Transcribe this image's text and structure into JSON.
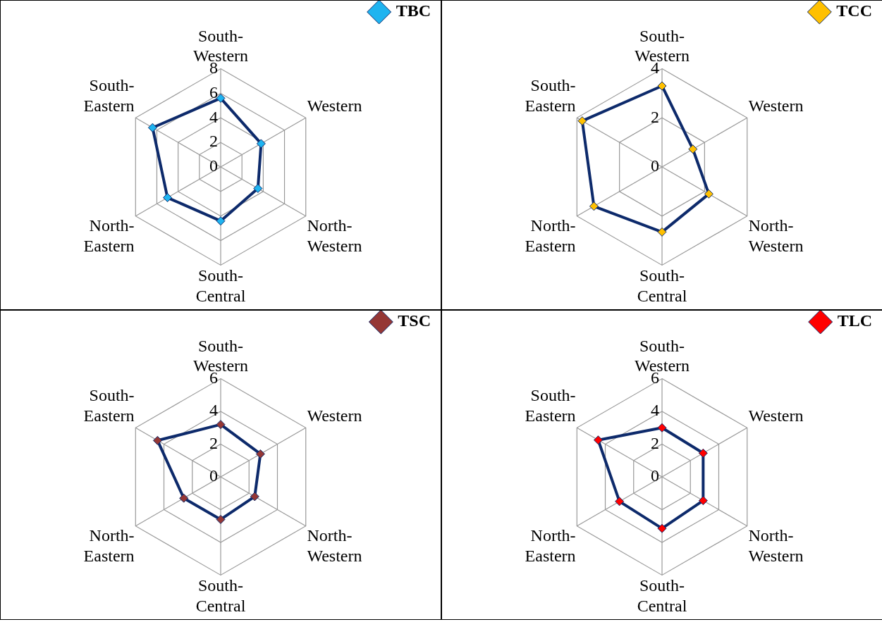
{
  "chart_data": [
    {
      "type": "radar",
      "categories": [
        "South-Western",
        "Western",
        "North-Western",
        "South-Central",
        "North-Eastern",
        "South-Eastern"
      ],
      "ylim": [
        0,
        8
      ],
      "yticks": [
        0,
        2,
        4,
        6,
        8
      ],
      "grid": true,
      "legend": "top right",
      "marker": "diamond",
      "series": [
        {
          "name": "TBC",
          "color": "#0d2a6b",
          "colors": [
            "#1fb4f0",
            "#1fb4f0",
            "#1fb4f0",
            "#1fb4f0",
            "#1fb4f0",
            "#1fb4f0"
          ],
          "values": [
            5.6,
            3.8,
            3.5,
            4.4,
            5.0,
            6.4
          ]
        }
      ]
    },
    {
      "type": "radar",
      "categories": [
        "South-Western",
        "Western",
        "North-Western",
        "South-Central",
        "North-Eastern",
        "South-Eastern"
      ],
      "ylim": [
        0,
        4
      ],
      "yticks": [
        0,
        2,
        4
      ],
      "grid": true,
      "legend": "top right",
      "marker": "diamond",
      "series": [
        {
          "name": "TCC",
          "color": "#0d2a6b",
          "colors": [
            "#ffc000",
            "#ffc000",
            "#ffc000",
            "#ffc000",
            "#ffc000",
            "#ffc000"
          ],
          "values": [
            3.3,
            1.45,
            2.2,
            2.65,
            3.2,
            3.75
          ]
        }
      ]
    },
    {
      "type": "radar",
      "categories": [
        "South-Western",
        "Western",
        "North-Western",
        "South-Central",
        "North-Eastern",
        "South-Eastern"
      ],
      "ylim": [
        0,
        6
      ],
      "yticks": [
        0,
        2,
        4,
        6
      ],
      "grid": true,
      "legend": "top right",
      "marker": "diamond",
      "series": [
        {
          "name": "TSC",
          "color": "#0d2a6b",
          "colors": [
            "#953735",
            "#953735",
            "#953735",
            "#953735",
            "#953735",
            "#953735"
          ],
          "values": [
            3.2,
            2.8,
            2.4,
            2.6,
            2.6,
            4.45
          ]
        }
      ]
    },
    {
      "type": "radar",
      "categories": [
        "South-Western",
        "Western",
        "North-Western",
        "South-Central",
        "North-Eastern",
        "South-Eastern"
      ],
      "ylim": [
        0,
        6
      ],
      "yticks": [
        0,
        2,
        4,
        6
      ],
      "grid": true,
      "legend": "top right",
      "marker": "diamond",
      "series": [
        {
          "name": "TLC",
          "color": "#0d2a6b",
          "colors": [
            "#ff0000",
            "#ff0000",
            "#ff0000",
            "#ff0000",
            "#ff0000",
            "#ff0000"
          ],
          "values": [
            3.0,
            2.9,
            2.9,
            3.15,
            3.0,
            4.5
          ]
        }
      ]
    }
  ]
}
